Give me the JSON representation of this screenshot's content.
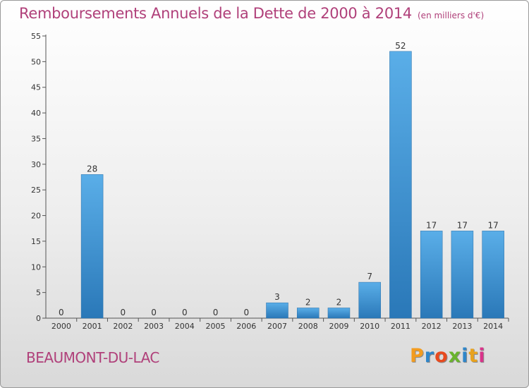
{
  "title": "Remboursements Annuels de la Dette de 2000 à 2014",
  "unit_note": "(en milliers d'€)",
  "commune": "BEAUMONT-DU-LAC",
  "logo": {
    "letters": [
      "P",
      "r",
      "o",
      "x",
      "i",
      "t",
      "i"
    ],
    "colors": [
      "#f39c1f",
      "#2f86c9",
      "#e84a1e",
      "#6ab42d",
      "#2f86c9",
      "#e8a21e",
      "#d9348a"
    ]
  },
  "chart_data": {
    "type": "bar",
    "title": "Remboursements Annuels de la Dette de 2000 à 2014",
    "categories": [
      "2000",
      "2001",
      "2002",
      "2003",
      "2004",
      "2005",
      "2006",
      "2007",
      "2008",
      "2009",
      "2010",
      "2011",
      "2012",
      "2013",
      "2014"
    ],
    "values": [
      0,
      28,
      0,
      0,
      0,
      0,
      0,
      3,
      2,
      2,
      7,
      52,
      17,
      17,
      17
    ],
    "data_labels": [
      "0",
      "28",
      "0",
      "0",
      "0",
      "0",
      "0",
      "3",
      "2",
      "2",
      "7",
      "52",
      "17",
      "17",
      "17"
    ],
    "ylim": [
      0,
      55
    ],
    "yticks": [
      0,
      5,
      10,
      15,
      20,
      25,
      30,
      35,
      40,
      45,
      50,
      55
    ],
    "ytick_labels": [
      "0",
      "5",
      "10",
      "15",
      "20",
      "25",
      "30",
      "35",
      "40",
      "45",
      "50",
      "55"
    ],
    "grid": false,
    "bar_color": "#4a9fdd"
  }
}
